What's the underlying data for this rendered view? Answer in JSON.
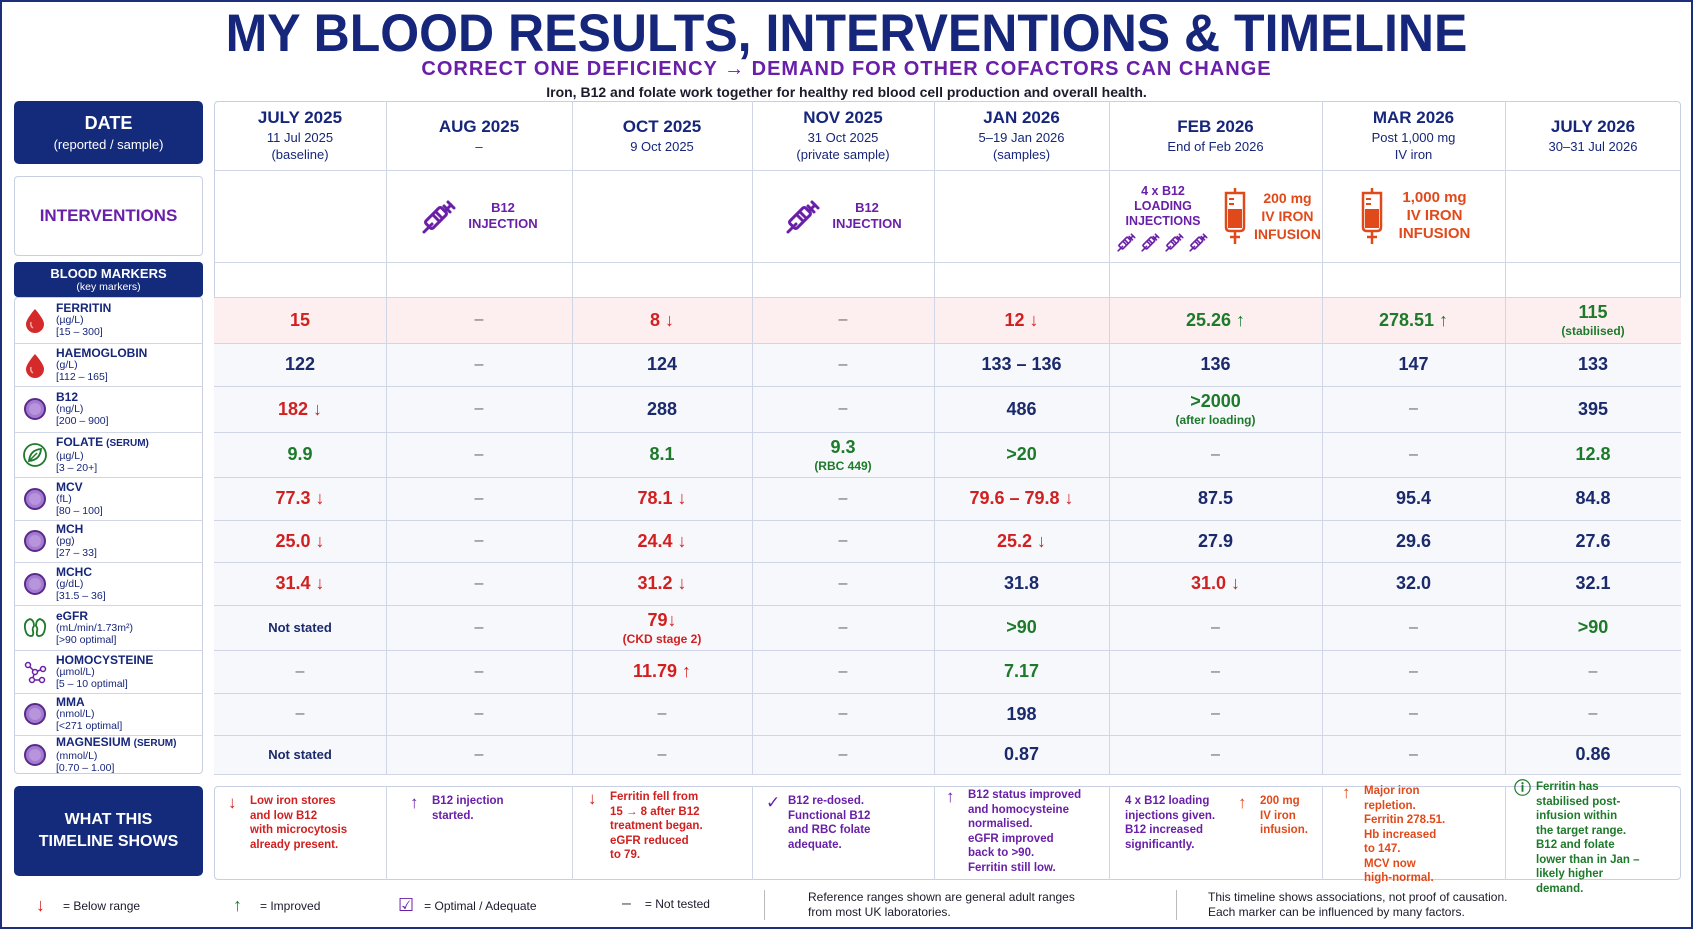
{
  "header": {
    "title": "MY BLOOD RESULTS, INTERVENTIONS & TIMELINE",
    "subtitle": "CORRECT ONE DEFICIENCY → DEMAND FOR OTHER COFACTORS CAN CHANGE",
    "tagline": "Iron, B12 and folate work together for healthy red blood cell production and overall health."
  },
  "sidebar": {
    "date_label": "DATE",
    "date_sub": "(reported / sample)",
    "interventions_label": "INTERVENTIONS",
    "markers_label": "BLOOD MARKERS",
    "markers_sub": "(key markers)",
    "timeline_label": "WHAT THIS TIMELINE SHOWS"
  },
  "columns": [
    {
      "month": "JULY 2025",
      "sub1": "11 Jul 2025",
      "sub2": "(baseline)"
    },
    {
      "month": "AUG 2025",
      "sub1": "–",
      "sub2": ""
    },
    {
      "month": "OCT 2025",
      "sub1": "9 Oct 2025",
      "sub2": ""
    },
    {
      "month": "NOV 2025",
      "sub1": "31 Oct 2025",
      "sub2": "(private sample)"
    },
    {
      "month": "JAN 2026",
      "sub1": "5–19 Jan 2026",
      "sub2": "(samples)"
    },
    {
      "month": "FEB 2026",
      "sub1": "End of Feb 2026",
      "sub2": ""
    },
    {
      "month": "MAR 2026",
      "sub1": "Post 1,000 mg",
      "sub2": "IV iron"
    },
    {
      "month": "JULY 2026",
      "sub1": "30–31 Jul 2026",
      "sub2": ""
    }
  ],
  "interventions": {
    "aug": {
      "line1": "B12",
      "line2": "INJECTION",
      "icon": "syringe-icon"
    },
    "nov": {
      "line1": "B12",
      "line2": "INJECTION",
      "icon": "syringe-icon"
    },
    "feb_loading": {
      "line1": "4 x B12",
      "line2": "LOADING",
      "line3": "INJECTIONS",
      "icon": "syringe-icon"
    },
    "feb_iron": {
      "line1": "200 mg",
      "line2": "IV IRON",
      "line3": "INFUSION",
      "icon": "iv-bag-icon"
    },
    "mar_iron": {
      "line1": "1,000 mg",
      "line2": "IV IRON",
      "line3": "INFUSION",
      "icon": "iv-bag-icon"
    }
  },
  "markers": [
    {
      "name": "FERRITIN",
      "name_extra": "",
      "unit": "(µg/L)",
      "range": "[15 – 300]",
      "icon": "blood-drop-icon",
      "values": [
        {
          "v": "15",
          "c": "red"
        },
        {
          "v": "–",
          "c": "dash"
        },
        {
          "v": "8 ↓",
          "c": "red"
        },
        {
          "v": "–",
          "c": "dash"
        },
        {
          "v": "12 ↓",
          "c": "red"
        },
        {
          "v": "25.26 ↑",
          "c": "green"
        },
        {
          "v": "278.51 ↑",
          "c": "green"
        },
        {
          "v": "115",
          "c": "green",
          "note": "(stabilised)"
        }
      ]
    },
    {
      "name": "HAEMOGLOBIN",
      "name_extra": "",
      "unit": "(g/L)",
      "range": "[112 – 165]",
      "icon": "blood-drop-icon",
      "values": [
        {
          "v": "122",
          "c": "navy"
        },
        {
          "v": "–",
          "c": "dash"
        },
        {
          "v": "124",
          "c": "navy"
        },
        {
          "v": "–",
          "c": "dash"
        },
        {
          "v": "133 – 136",
          "c": "navy"
        },
        {
          "v": "136",
          "c": "navy"
        },
        {
          "v": "147",
          "c": "navy"
        },
        {
          "v": "133",
          "c": "navy"
        }
      ]
    },
    {
      "name": "B12",
      "name_extra": "",
      "unit": "(ng/L)",
      "range": "[200 – 900]",
      "icon": "circle-icon",
      "values": [
        {
          "v": "182 ↓",
          "c": "red"
        },
        {
          "v": "–",
          "c": "dash"
        },
        {
          "v": "288",
          "c": "navy"
        },
        {
          "v": "–",
          "c": "dash"
        },
        {
          "v": "486",
          "c": "navy"
        },
        {
          "v": ">2000",
          "c": "green",
          "note": "(after loading)"
        },
        {
          "v": "–",
          "c": "dash"
        },
        {
          "v": "395",
          "c": "navy"
        }
      ]
    },
    {
      "name": "FOLATE",
      "name_extra": "(SERUM)",
      "unit": "(µg/L)",
      "range": "[3 – 20+]",
      "icon": "leaf-icon",
      "values": [
        {
          "v": "9.9",
          "c": "green"
        },
        {
          "v": "–",
          "c": "dash"
        },
        {
          "v": "8.1",
          "c": "green"
        },
        {
          "v": "9.3",
          "c": "green",
          "note": "(RBC 449)"
        },
        {
          "v": ">20",
          "c": "green"
        },
        {
          "v": "–",
          "c": "dash"
        },
        {
          "v": "–",
          "c": "dash"
        },
        {
          "v": "12.8",
          "c": "green"
        }
      ]
    },
    {
      "name": "MCV",
      "name_extra": "",
      "unit": "(fL)",
      "range": "[80 – 100]",
      "icon": "circle-icon",
      "values": [
        {
          "v": "77.3 ↓",
          "c": "red"
        },
        {
          "v": "–",
          "c": "dash"
        },
        {
          "v": "78.1 ↓",
          "c": "red"
        },
        {
          "v": "–",
          "c": "dash"
        },
        {
          "v": "79.6 – 79.8 ↓",
          "c": "red"
        },
        {
          "v": "87.5",
          "c": "navy"
        },
        {
          "v": "95.4",
          "c": "navy"
        },
        {
          "v": "84.8",
          "c": "navy"
        }
      ]
    },
    {
      "name": "MCH",
      "name_extra": "",
      "unit": "(pg)",
      "range": "[27 – 33]",
      "icon": "circle-icon",
      "values": [
        {
          "v": "25.0 ↓",
          "c": "red"
        },
        {
          "v": "–",
          "c": "dash"
        },
        {
          "v": "24.4 ↓",
          "c": "red"
        },
        {
          "v": "–",
          "c": "dash"
        },
        {
          "v": "25.2 ↓",
          "c": "red"
        },
        {
          "v": "27.9",
          "c": "navy"
        },
        {
          "v": "29.6",
          "c": "navy"
        },
        {
          "v": "27.6",
          "c": "navy"
        }
      ]
    },
    {
      "name": "MCHC",
      "name_extra": "",
      "unit": "(g/dL)",
      "range": "[31.5 – 36]",
      "icon": "circle-icon",
      "values": [
        {
          "v": "31.4 ↓",
          "c": "red"
        },
        {
          "v": "–",
          "c": "dash"
        },
        {
          "v": "31.2 ↓",
          "c": "red"
        },
        {
          "v": "–",
          "c": "dash"
        },
        {
          "v": "31.8",
          "c": "navy"
        },
        {
          "v": "31.0 ↓",
          "c": "red"
        },
        {
          "v": "32.0",
          "c": "navy"
        },
        {
          "v": "32.1",
          "c": "navy"
        }
      ]
    },
    {
      "name": "eGFR",
      "name_extra": "",
      "unit": "(mL/min/1.73m²)",
      "range": "[>90 optimal]",
      "icon": "kidney-icon",
      "values": [
        {
          "v": "Not stated",
          "c": "small"
        },
        {
          "v": "–",
          "c": "dash"
        },
        {
          "v": "79↓",
          "c": "red",
          "note": "(CKD stage 2)"
        },
        {
          "v": "–",
          "c": "dash"
        },
        {
          "v": ">90",
          "c": "green"
        },
        {
          "v": "–",
          "c": "dash"
        },
        {
          "v": "–",
          "c": "dash"
        },
        {
          "v": ">90",
          "c": "green"
        }
      ]
    },
    {
      "name": "HOMOCYSTEINE",
      "name_extra": "",
      "unit": "(µmol/L)",
      "range": "[5 – 10 optimal]",
      "icon": "molecule-icon",
      "values": [
        {
          "v": "–",
          "c": "dash"
        },
        {
          "v": "–",
          "c": "dash"
        },
        {
          "v": "11.79 ↑",
          "c": "red"
        },
        {
          "v": "–",
          "c": "dash"
        },
        {
          "v": "7.17",
          "c": "green"
        },
        {
          "v": "–",
          "c": "dash"
        },
        {
          "v": "–",
          "c": "dash"
        },
        {
          "v": "–",
          "c": "dash"
        }
      ]
    },
    {
      "name": "MMA",
      "name_extra": "",
      "unit": "(nmol/L)",
      "range": "[<271 optimal]",
      "icon": "circle-icon",
      "values": [
        {
          "v": "–",
          "c": "dash"
        },
        {
          "v": "–",
          "c": "dash"
        },
        {
          "v": "–",
          "c": "dash"
        },
        {
          "v": "–",
          "c": "dash"
        },
        {
          "v": "198",
          "c": "navy"
        },
        {
          "v": "–",
          "c": "dash"
        },
        {
          "v": "–",
          "c": "dash"
        },
        {
          "v": "–",
          "c": "dash"
        }
      ]
    },
    {
      "name": "MAGNESIUM",
      "name_extra": "(SERUM)",
      "unit": "(mmol/L)",
      "range": "[0.70 – 1.00]",
      "icon": "circle-icon",
      "values": [
        {
          "v": "Not stated",
          "c": "small"
        },
        {
          "v": "–",
          "c": "dash"
        },
        {
          "v": "–",
          "c": "dash"
        },
        {
          "v": "–",
          "c": "dash"
        },
        {
          "v": "0.87",
          "c": "navy"
        },
        {
          "v": "–",
          "c": "dash"
        },
        {
          "v": "–",
          "c": "dash"
        },
        {
          "v": "0.86",
          "c": "navy"
        }
      ]
    }
  ],
  "timeline_notes": [
    {
      "icon": "↓",
      "color": "#d12020",
      "text": [
        "Low iron stores",
        "and low B12",
        "with microcytosis",
        "already present."
      ]
    },
    {
      "icon": "↑",
      "color": "#6a1fa8",
      "text": [
        "B12 injection",
        "started."
      ]
    },
    {
      "icon": "↓",
      "color": "#d12020",
      "text": [
        "Ferritin fell from",
        "15 → 8 after B12",
        "treatment began.",
        "eGFR reduced",
        "to 79."
      ]
    },
    {
      "icon": "✓",
      "color": "#6a1fa8",
      "text": [
        "B12 re-dosed.",
        "Functional B12",
        "and RBC folate",
        "adequate."
      ]
    },
    {
      "icon": "↑",
      "color": "#6a1fa8",
      "text": [
        "B12 status improved",
        "and homocysteine",
        "normalised.",
        "eGFR improved",
        "back to >90.",
        "Ferritin still low."
      ]
    },
    {
      "icon": "",
      "color": "#6a1fa8",
      "text": [
        "4 x B12 loading",
        "injections given.",
        "B12 increased",
        "significantly."
      ]
    },
    {
      "icon": "↑",
      "color": "#e04a1a",
      "text": [
        "200 mg",
        "IV iron",
        "infusion."
      ]
    },
    {
      "icon": "↑",
      "color": "#e04a1a",
      "text": [
        "Major iron",
        "repletion.",
        "Ferritin 278.51.",
        "Hb increased",
        "to 147.",
        "MCV now",
        "high-normal."
      ]
    },
    {
      "icon": "ⓘ",
      "color": "#1d7a2a",
      "text": [
        "Ferritin has",
        "stabilised post-",
        "infusion within",
        "the target range.",
        "B12 and folate",
        "lower than in Jan –",
        "likely higher",
        "demand."
      ]
    }
  ],
  "legend": {
    "below": "= Below range",
    "improved": "= Improved",
    "optimal": "= Optimal / Adequate",
    "not_tested": "= Not tested",
    "ref1": "Reference ranges shown are general adult ranges",
    "ref2": "from most UK laboratories.",
    "cause1": "This timeline shows associations, not proof of causation.",
    "cause2": "Each marker can be influenced by many factors."
  },
  "colors": {
    "navy": "#142a7a",
    "purple": "#6a1fa8",
    "red": "#d12020",
    "green": "#1d7a2a",
    "orange": "#e04a1a"
  }
}
